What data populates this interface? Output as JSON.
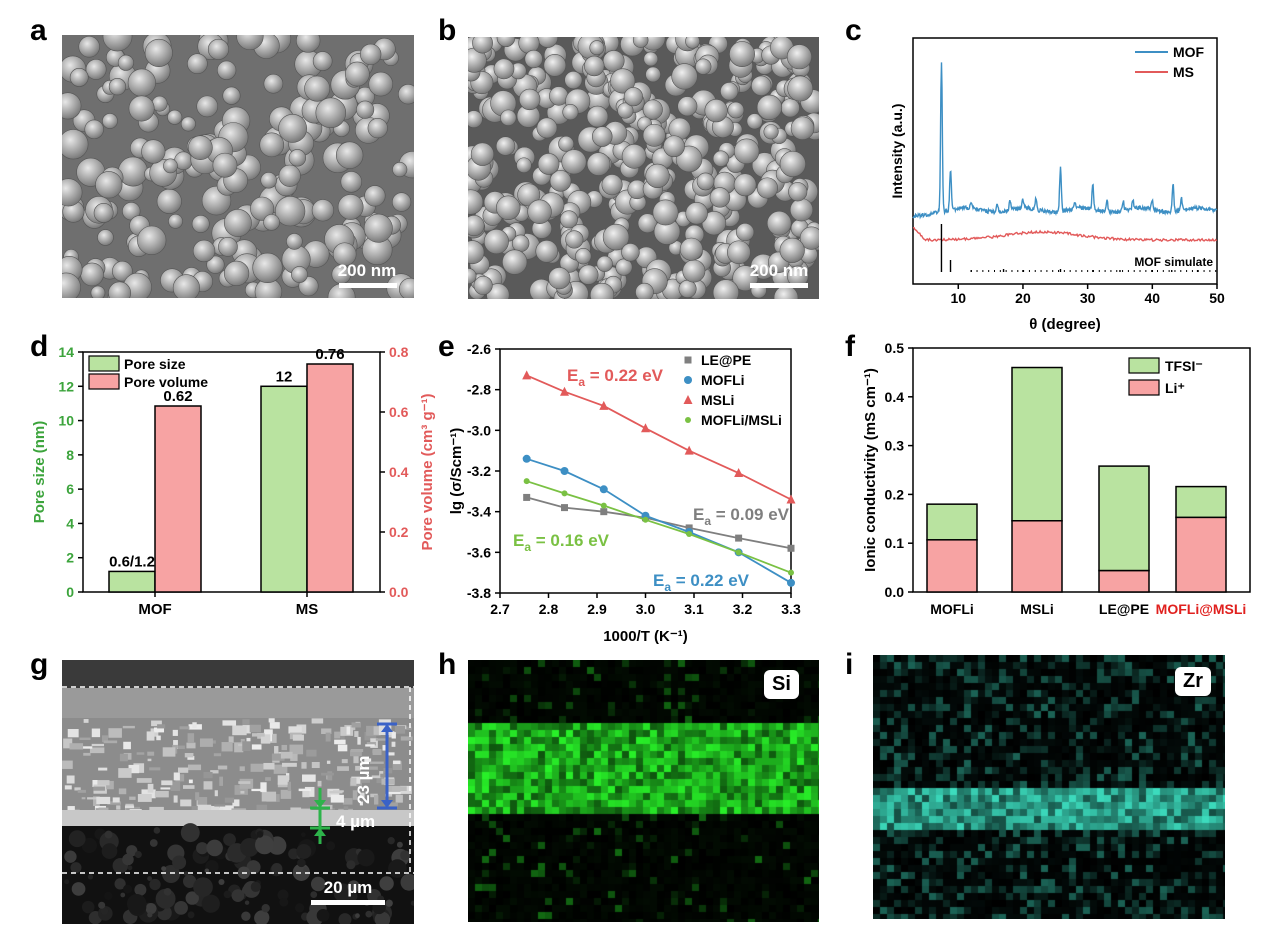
{
  "panels": {
    "a": {
      "letter": "a",
      "scale": "200 nm"
    },
    "b": {
      "letter": "b",
      "scale": "200 nm"
    },
    "c": {
      "letter": "c"
    },
    "d": {
      "letter": "d"
    },
    "e": {
      "letter": "e"
    },
    "f": {
      "letter": "f"
    },
    "g": {
      "letter": "g",
      "scale": "20 µm",
      "thick": "23 µm",
      "thin": "4 µm"
    },
    "h": {
      "letter": "h",
      "element": "Si"
    },
    "i": {
      "letter": "i",
      "element": "Zr"
    }
  },
  "colors": {
    "mof": "#3d8fc4",
    "ms": "#e25a5a",
    "green": "#7ac143",
    "gray": "#7f7f7f",
    "bar_green": "#b9e3a0",
    "bar_pink": "#f7a3a3",
    "axis_green": "#3ca43c",
    "axis_red": "#e25a5a"
  },
  "chart_data": [
    {
      "id": "c",
      "type": "line",
      "xlabel": "θ (degree)",
      "ylabel": "Intensity (a.u.)",
      "xlim": [
        3,
        50
      ],
      "xticks": [
        10,
        20,
        30,
        40,
        50
      ],
      "series": [
        {
          "name": "MOF"
        },
        {
          "name": "MS"
        }
      ],
      "annotation": "MOF simulate"
    },
    {
      "id": "d",
      "type": "bar",
      "categories": [
        "MOF",
        "MS"
      ],
      "ylabel": "Pore size (nm)",
      "ylabel2": "Pore volume (cm³ g⁻¹)",
      "ylim": [
        0,
        14
      ],
      "ylim2": [
        0,
        0.8
      ],
      "yticks": [
        0,
        2,
        4,
        6,
        8,
        10,
        12,
        14
      ],
      "yticks2": [
        0.0,
        0.2,
        0.4,
        0.6,
        0.8
      ],
      "series": [
        {
          "name": "Pore size",
          "values": [
            1.2,
            12
          ],
          "labels": [
            "0.6/1.2",
            "12"
          ]
        },
        {
          "name": "Pore volume",
          "values": [
            0.62,
            0.76
          ],
          "labels": [
            "0.62",
            "0.76"
          ]
        }
      ]
    },
    {
      "id": "e",
      "type": "scatter",
      "xlabel": "1000/T (K⁻¹)",
      "ylabel": "lg (σ/Scm⁻¹)",
      "xlim": [
        2.7,
        3.3
      ],
      "ylim": [
        -3.8,
        -2.6
      ],
      "xticks": [
        2.7,
        2.8,
        2.9,
        3.0,
        3.1,
        3.2,
        3.3
      ],
      "yticks": [
        -2.6,
        -2.8,
        -3.0,
        -3.2,
        -3.4,
        -3.6,
        -3.8
      ],
      "x": [
        2.755,
        2.833,
        2.914,
        3.0,
        3.09,
        3.192,
        3.3
      ],
      "series": [
        {
          "name": "LE@PE",
          "values": [
            -3.33,
            -3.38,
            -3.4,
            -3.43,
            -3.48,
            -3.53,
            -3.58
          ],
          "ea": "0.09 eV"
        },
        {
          "name": "MOFLi",
          "values": [
            -3.14,
            -3.2,
            -3.29,
            -3.42,
            -3.5,
            -3.6,
            -3.75
          ],
          "ea": "0.22 eV"
        },
        {
          "name": "MSLi",
          "values": [
            -2.73,
            -2.81,
            -2.88,
            -2.99,
            -3.1,
            -3.21,
            -3.34
          ],
          "ea": "0.22 eV"
        },
        {
          "name": "MOFLi/MSLi",
          "values": [
            -3.25,
            -3.31,
            -3.37,
            -3.44,
            -3.51,
            -3.6,
            -3.7
          ],
          "ea": "0.16 eV"
        }
      ],
      "ea_prefix": "E",
      "ea_sub": "a",
      "ea_eq": " = "
    },
    {
      "id": "f",
      "type": "bar",
      "categories": [
        "MOFLi",
        "MSLi",
        "LE@PE",
        "MOFLi@MSLi"
      ],
      "ylabel": "Ionic conductivity (mS cm⁻¹)",
      "ylim": [
        0,
        0.5
      ],
      "yticks": [
        0.0,
        0.1,
        0.2,
        0.3,
        0.4,
        0.5
      ],
      "series": [
        {
          "name": "Li⁺",
          "values": [
            0.107,
            0.146,
            0.044,
            0.153
          ]
        },
        {
          "name": "TFSI⁻",
          "values": [
            0.073,
            0.314,
            0.214,
            0.063
          ]
        }
      ],
      "stacked": true
    }
  ]
}
